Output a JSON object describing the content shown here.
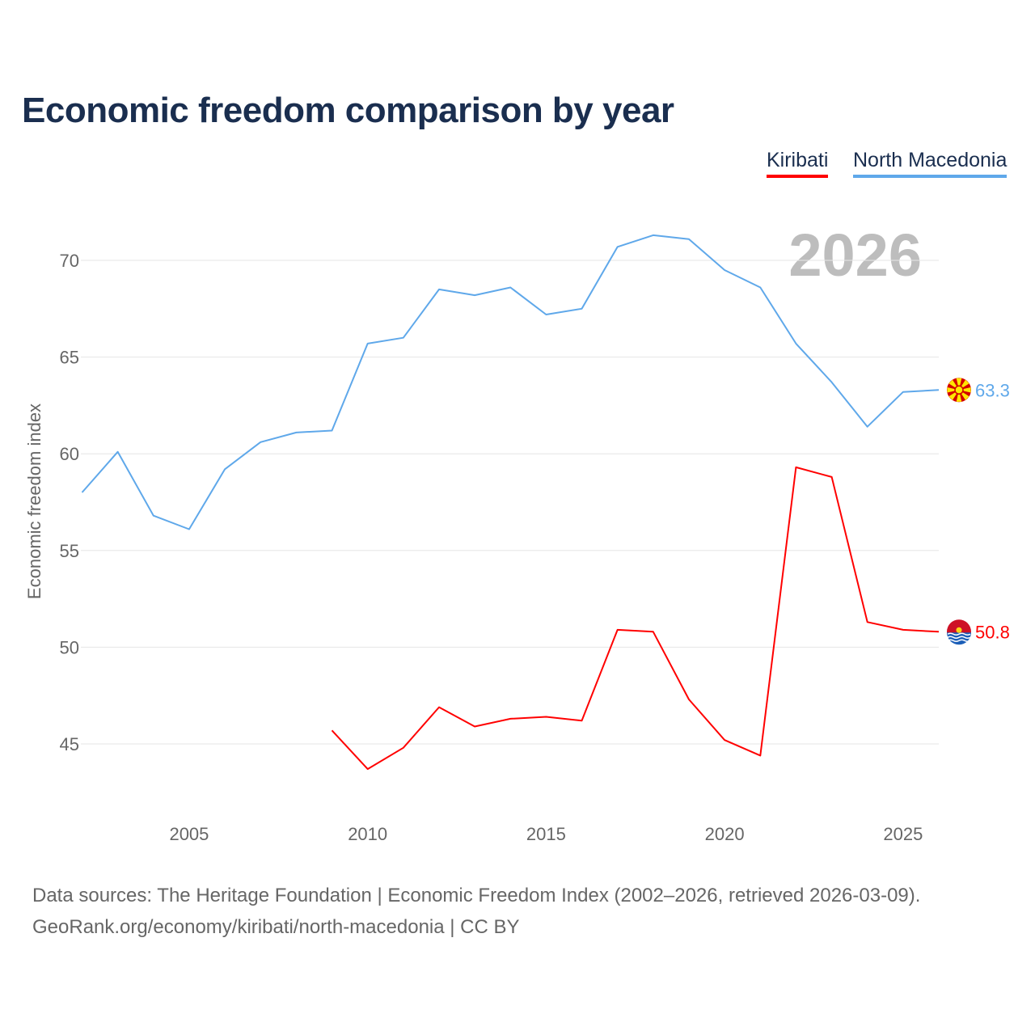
{
  "title": "Economic freedom comparison by year",
  "legend": [
    {
      "name": "Kiribati",
      "color": "#ff0000"
    },
    {
      "name": "North Macedonia",
      "color": "#5fa8ea"
    }
  ],
  "footer": {
    "line1": "Data sources: The Heritage Foundation | Economic Freedom Index (2002–2026, retrieved 2026-03-09).",
    "line2": "GeoRank.org/economy/kiribati/north-macedonia | CC BY"
  },
  "chart_data": {
    "type": "line",
    "title": "Economic freedom comparison by year",
    "watermark_year": "2026",
    "xlabel": "",
    "ylabel": "Economic freedom index",
    "xlim": [
      2002,
      2026
    ],
    "ylim": [
      41.2,
      72.6
    ],
    "xticks": [
      2005,
      2010,
      2015,
      2020,
      2025
    ],
    "yticks": [
      45,
      50,
      55,
      60,
      65,
      70
    ],
    "grid": true,
    "legend_position": "top-right",
    "series": [
      {
        "name": "North Macedonia",
        "color": "#5fa8ea",
        "end_label": "63.3",
        "flag": "north-macedonia",
        "x": [
          2002,
          2003,
          2004,
          2005,
          2006,
          2007,
          2008,
          2009,
          2010,
          2011,
          2012,
          2013,
          2014,
          2015,
          2016,
          2017,
          2018,
          2019,
          2020,
          2021,
          2022,
          2023,
          2024,
          2025,
          2026
        ],
        "values": [
          58.0,
          60.1,
          56.8,
          56.1,
          59.2,
          60.6,
          61.1,
          61.2,
          65.7,
          66.0,
          68.5,
          68.2,
          68.6,
          67.2,
          67.5,
          70.7,
          71.3,
          71.1,
          69.5,
          68.6,
          65.7,
          63.7,
          61.4,
          63.2,
          63.3
        ]
      },
      {
        "name": "Kiribati",
        "color": "#ff0000",
        "end_label": "50.8",
        "flag": "kiribati",
        "x": [
          2009,
          2010,
          2011,
          2012,
          2013,
          2014,
          2015,
          2016,
          2017,
          2018,
          2019,
          2020,
          2021,
          2022,
          2023,
          2024,
          2025,
          2026
        ],
        "values": [
          45.7,
          43.7,
          44.8,
          46.9,
          45.9,
          46.3,
          46.4,
          46.2,
          50.9,
          50.8,
          47.3,
          45.2,
          44.4,
          59.3,
          58.8,
          51.3,
          50.9,
          50.8
        ]
      }
    ]
  }
}
